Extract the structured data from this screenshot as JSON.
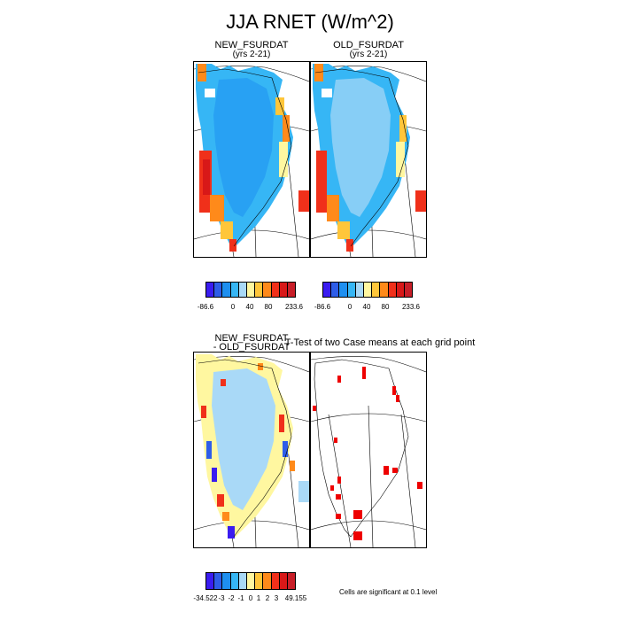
{
  "title": "JJA RNET (W/m^2)",
  "panels": {
    "p1": {
      "title": "NEW_FSURDAT",
      "subtitle": "(yrs 2-21)"
    },
    "p2": {
      "title": "OLD_FSURDAT",
      "subtitle": "(yrs 2-21)"
    },
    "p3": {
      "title_line1": "NEW_FSURDAT",
      "title_line2": "- OLD_FSURDAT"
    },
    "p4": {
      "title": "T-Test of two Case means at each grid point"
    }
  },
  "colorbar_top": {
    "colors": [
      "#3a1cf0",
      "#2e5de8",
      "#1e8ff0",
      "#36b6f5",
      "#a9d9f7",
      "#fff7a0",
      "#ffc63a",
      "#ff8a1a",
      "#f0301a",
      "#d81818",
      "#c81e28"
    ],
    "labels": [
      "-86.6",
      "0",
      "40",
      "80",
      "233.6"
    ]
  },
  "colorbar_bottom": {
    "colors": [
      "#3a1cf0",
      "#2e5de8",
      "#1e8ff0",
      "#36b6f5",
      "#a9d9f7",
      "#fff7a0",
      "#ffc63a",
      "#ff8a1a",
      "#f0301a",
      "#d81818",
      "#c81e28"
    ],
    "labels": [
      "-34.522",
      "-3",
      "-2",
      "-1",
      "0",
      "1",
      "2",
      "3",
      "49.155"
    ]
  },
  "significance_note": "Cells are significant at 0.1 level"
}
